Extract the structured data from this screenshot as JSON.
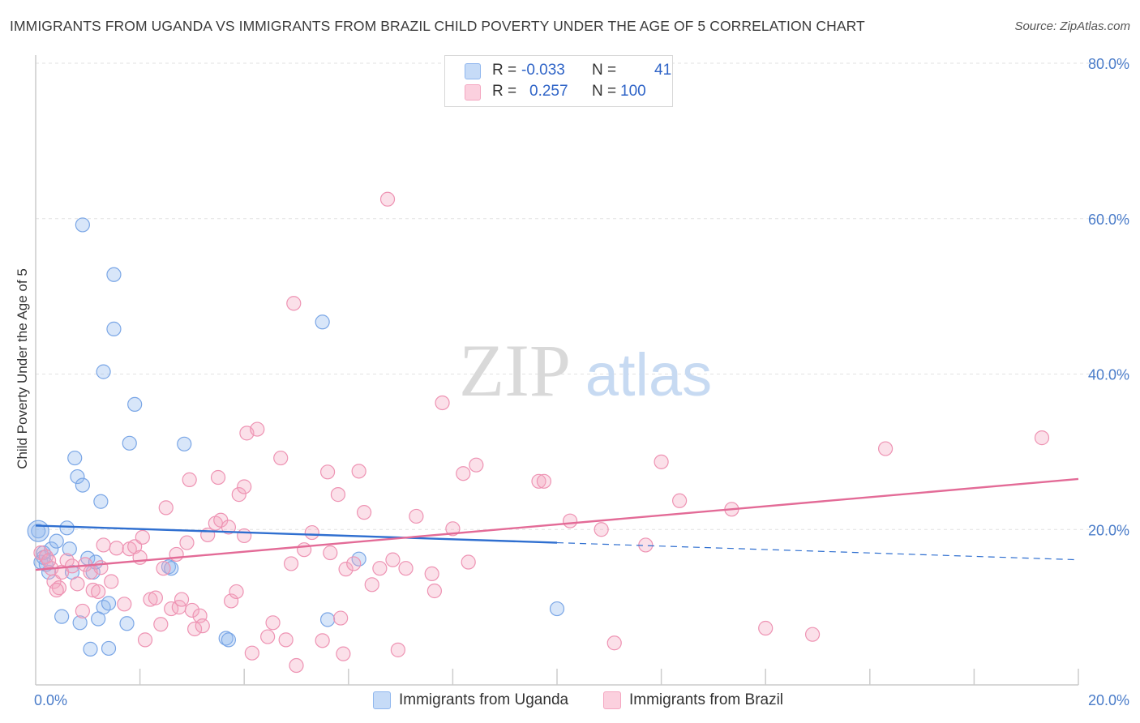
{
  "title": "IMMIGRANTS FROM UGANDA VS IMMIGRANTS FROM BRAZIL CHILD POVERTY UNDER THE AGE OF 5 CORRELATION CHART",
  "source": "Source: ZipAtlas.com",
  "watermark": {
    "zip": "ZIP",
    "atlas": "atlas"
  },
  "legend": {
    "rows": [
      {
        "r_label": "R =",
        "r_value": "-0.033",
        "n_label": "N =",
        "n_value": "41",
        "color": "#8fb6ee"
      },
      {
        "r_label": "R =",
        "r_value": "0.257",
        "n_label": "N =",
        "n_value": "100",
        "color": "#f4a6c0"
      }
    ]
  },
  "bottom_legend": [
    {
      "label": "Immigrants from Uganda",
      "color": "#8fb6ee"
    },
    {
      "label": "Immigrants from Brazil",
      "color": "#f4a6c0"
    }
  ],
  "chart_data": {
    "type": "scatter",
    "title": "IMMIGRANTS FROM UGANDA VS IMMIGRANTS FROM BRAZIL CHILD POVERTY UNDER THE AGE OF 5 CORRELATION CHART",
    "xlabel": "",
    "ylabel": "Child Poverty Under the Age of 5",
    "xlim": [
      0,
      20
    ],
    "ylim": [
      0,
      80
    ],
    "x_tick_labels": [
      "0.0%",
      "20.0%"
    ],
    "y_ticks": [
      20,
      40,
      60,
      80
    ],
    "y_tick_labels": [
      "20.0%",
      "40.0%",
      "60.0%",
      "80.0%"
    ],
    "grid": true,
    "legend_position": "top-center",
    "series": [
      {
        "name": "Immigrants from Uganda",
        "color": "#8fb6ee",
        "line_color": "#2f6fd0",
        "trend": {
          "x0": 0,
          "y0": 20.5,
          "x1": 10,
          "y1": 18.3,
          "dash_to_x": 20,
          "dash_to_y": 16.1
        },
        "points": [
          [
            0.05,
            19.8
          ],
          [
            0.1,
            15.8
          ],
          [
            0.15,
            16.4
          ],
          [
            0.25,
            14.5
          ],
          [
            0.3,
            17.5
          ],
          [
            0.4,
            18.5
          ],
          [
            0.5,
            8.8
          ],
          [
            0.6,
            20.2
          ],
          [
            0.65,
            17.5
          ],
          [
            0.7,
            14.5
          ],
          [
            0.75,
            29.2
          ],
          [
            0.8,
            26.8
          ],
          [
            0.85,
            8.0
          ],
          [
            0.9,
            25.7
          ],
          [
            0.9,
            59.2
          ],
          [
            1.0,
            16.3
          ],
          [
            1.05,
            4.6
          ],
          [
            1.1,
            14.5
          ],
          [
            1.15,
            15.8
          ],
          [
            1.2,
            8.5
          ],
          [
            1.25,
            23.6
          ],
          [
            1.3,
            10.0
          ],
          [
            1.4,
            10.5
          ],
          [
            1.4,
            4.7
          ],
          [
            1.5,
            45.8
          ],
          [
            1.5,
            52.8
          ],
          [
            1.3,
            40.3
          ],
          [
            1.75,
            7.9
          ],
          [
            1.8,
            31.1
          ],
          [
            1.9,
            36.1
          ],
          [
            2.55,
            15.2
          ],
          [
            2.6,
            15.0
          ],
          [
            2.85,
            31.0
          ],
          [
            3.65,
            6.0
          ],
          [
            3.7,
            5.8
          ],
          [
            5.5,
            46.7
          ],
          [
            5.6,
            8.4
          ],
          [
            6.2,
            16.2
          ],
          [
            10.0,
            9.8
          ],
          [
            0.15,
            17.0
          ],
          [
            0.2,
            15.5
          ]
        ]
      },
      {
        "name": "Immigrants from Brazil",
        "color": "#f4a6c0",
        "line_color": "#e36b97",
        "trend": {
          "x0": 0,
          "y0": 14.8,
          "x1": 20,
          "y1": 26.5
        },
        "points": [
          [
            0.1,
            17.0
          ],
          [
            0.2,
            16.5
          ],
          [
            0.3,
            15.0
          ],
          [
            0.35,
            13.3
          ],
          [
            0.45,
            12.5
          ],
          [
            0.5,
            14.5
          ],
          [
            0.6,
            16.0
          ],
          [
            0.7,
            15.3
          ],
          [
            0.8,
            13.0
          ],
          [
            0.9,
            9.5
          ],
          [
            0.95,
            15.5
          ],
          [
            1.05,
            14.5
          ],
          [
            1.1,
            12.2
          ],
          [
            1.2,
            12.0
          ],
          [
            1.25,
            15.1
          ],
          [
            1.3,
            18.0
          ],
          [
            1.45,
            13.3
          ],
          [
            1.55,
            17.6
          ],
          [
            1.7,
            10.4
          ],
          [
            1.8,
            17.5
          ],
          [
            1.9,
            17.8
          ],
          [
            2.0,
            16.4
          ],
          [
            2.05,
            19.0
          ],
          [
            2.1,
            5.8
          ],
          [
            2.2,
            11.0
          ],
          [
            2.3,
            11.2
          ],
          [
            2.4,
            7.8
          ],
          [
            2.45,
            15.0
          ],
          [
            2.5,
            22.8
          ],
          [
            2.6,
            9.8
          ],
          [
            2.7,
            16.8
          ],
          [
            2.75,
            10.0
          ],
          [
            2.8,
            11.0
          ],
          [
            2.9,
            18.3
          ],
          [
            2.95,
            26.4
          ],
          [
            3.0,
            9.6
          ],
          [
            3.05,
            7.2
          ],
          [
            3.15,
            8.9
          ],
          [
            3.2,
            7.6
          ],
          [
            3.3,
            19.3
          ],
          [
            3.45,
            20.8
          ],
          [
            3.5,
            26.7
          ],
          [
            3.55,
            21.2
          ],
          [
            3.7,
            20.3
          ],
          [
            3.75,
            10.8
          ],
          [
            3.85,
            12.0
          ],
          [
            3.9,
            24.5
          ],
          [
            4.0,
            25.5
          ],
          [
            4.0,
            19.2
          ],
          [
            4.05,
            32.4
          ],
          [
            4.15,
            4.1
          ],
          [
            4.25,
            32.9
          ],
          [
            4.45,
            6.2
          ],
          [
            4.55,
            8.0
          ],
          [
            4.7,
            29.2
          ],
          [
            4.8,
            5.8
          ],
          [
            4.9,
            15.6
          ],
          [
            4.95,
            49.1
          ],
          [
            5.0,
            2.5
          ],
          [
            5.15,
            17.4
          ],
          [
            5.3,
            19.6
          ],
          [
            5.5,
            5.7
          ],
          [
            5.6,
            27.4
          ],
          [
            5.65,
            17.0
          ],
          [
            5.8,
            24.5
          ],
          [
            5.85,
            8.6
          ],
          [
            5.9,
            4.0
          ],
          [
            5.95,
            14.9
          ],
          [
            6.1,
            15.6
          ],
          [
            6.2,
            27.5
          ],
          [
            6.3,
            22.2
          ],
          [
            6.45,
            12.9
          ],
          [
            6.6,
            15.0
          ],
          [
            6.75,
            62.5
          ],
          [
            6.85,
            16.1
          ],
          [
            6.95,
            4.5
          ],
          [
            7.1,
            15.0
          ],
          [
            7.3,
            21.7
          ],
          [
            7.6,
            14.3
          ],
          [
            7.65,
            12.1
          ],
          [
            7.8,
            36.3
          ],
          [
            8.0,
            20.1
          ],
          [
            8.2,
            27.2
          ],
          [
            8.3,
            15.8
          ],
          [
            8.45,
            28.3
          ],
          [
            9.65,
            26.2
          ],
          [
            9.75,
            26.2
          ],
          [
            10.25,
            21.1
          ],
          [
            10.85,
            20.0
          ],
          [
            11.1,
            5.4
          ],
          [
            11.7,
            18.0
          ],
          [
            12.0,
            28.7
          ],
          [
            12.35,
            23.7
          ],
          [
            13.35,
            22.6
          ],
          [
            14.0,
            7.3
          ],
          [
            14.9,
            6.5
          ],
          [
            16.3,
            30.4
          ],
          [
            19.3,
            31.8
          ],
          [
            0.25,
            16.0
          ],
          [
            0.4,
            12.2
          ]
        ]
      }
    ]
  }
}
